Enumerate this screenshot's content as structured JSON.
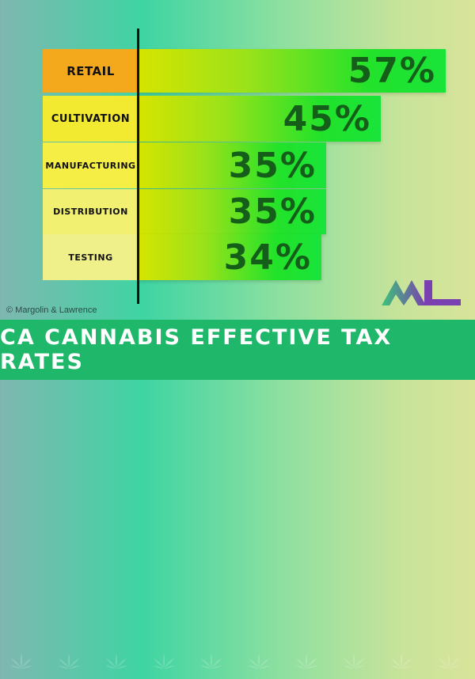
{
  "chart_data": {
    "type": "bar",
    "orientation": "horizontal",
    "categories": [
      "RETAIL",
      "CULTIVATION",
      "MANUFACTURING",
      "DISTRIBUTION",
      "TESTING"
    ],
    "values": [
      57,
      45,
      35,
      35,
      34
    ],
    "value_labels": [
      "57%",
      "45%",
      "35%",
      "35%",
      "34%"
    ],
    "xlim": [
      0,
      60
    ],
    "grid": false,
    "colors": {
      "label_bg": [
        "#f4a81c",
        "#f2ea30",
        "#f5ef45",
        "#f2f070",
        "#f0f08a"
      ],
      "bar_start": "#d6e400",
      "bar_end": "#22e22a",
      "value_text": "#155e1a"
    }
  },
  "credit": "© Margolin & Lawrence",
  "banner": {
    "title": "CA CANNABIS EFFECTIVE TAX RATES",
    "color": "#1fb86a"
  },
  "logo": {
    "icon": "ml-logo-icon",
    "colors": [
      "#3cc47a",
      "#7a3fb0"
    ]
  }
}
